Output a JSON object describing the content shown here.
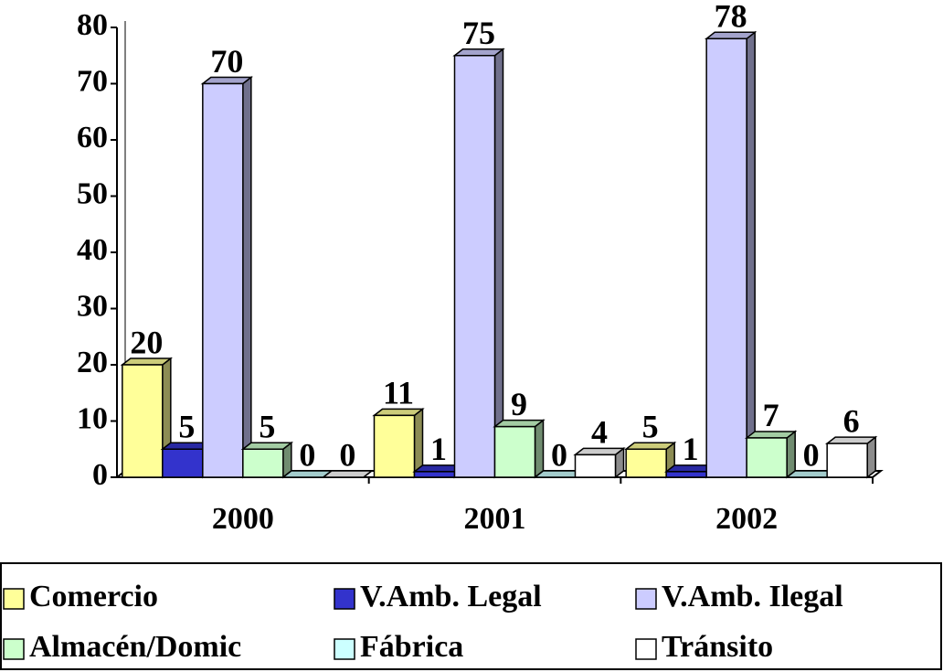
{
  "chart_data": {
    "type": "bar3d",
    "categories": [
      "2000",
      "2001",
      "2002"
    ],
    "series": [
      {
        "name": "Comercio",
        "color": "#ffff99",
        "values": [
          20,
          11,
          5
        ]
      },
      {
        "name": "V.Amb. Legal",
        "color": "#3333cc",
        "values": [
          5,
          1,
          1
        ]
      },
      {
        "name": "V.Amb. Ilegal",
        "color": "#ccccff",
        "values": [
          70,
          75,
          78
        ]
      },
      {
        "name": "Almacén/Domic",
        "color": "#ccffcc",
        "values": [
          5,
          9,
          7
        ]
      },
      {
        "name": "Fábrica",
        "color": "#ccffff",
        "values": [
          0,
          0,
          0
        ]
      },
      {
        "name": "Tránsito",
        "color": "#ffffff",
        "values": [
          0,
          4,
          6
        ]
      }
    ],
    "ylim": [
      0,
      80
    ],
    "yticks": [
      0,
      10,
      20,
      30,
      40,
      50,
      60,
      70,
      80
    ],
    "legend": "bottom",
    "data_labels": true
  }
}
